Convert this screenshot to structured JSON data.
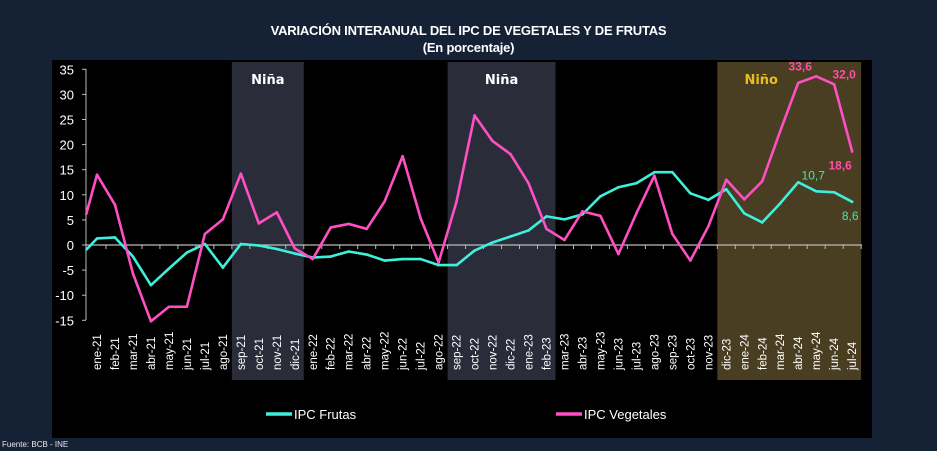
{
  "chart_data": {
    "type": "line",
    "title": "VARIACIÓN INTERANUAL DEL IPC DE VEGETALES Y DE FRUTAS",
    "subtitle": "(En porcentaje)",
    "source": "Fuente: BCB - INE",
    "categories": [
      "ene-21",
      "feb-21",
      "mar-21",
      "abr-21",
      "may-21",
      "jun-21",
      "jul-21",
      "ago-21",
      "sep-21",
      "oct-21",
      "nov-21",
      "dic-21",
      "ene-22",
      "feb-22",
      "mar-22",
      "abr-22",
      "may-22",
      "jun-22",
      "jul-22",
      "ago-22",
      "sep-22",
      "oct-22",
      "nov-22",
      "dic-22",
      "ene-23",
      "feb-23",
      "mar-23",
      "abr-23",
      "may-23",
      "jun-23",
      "jul-23",
      "ago-23",
      "sep-23",
      "oct-23",
      "nov-23",
      "dic-23",
      "ene-24",
      "feb-24",
      "mar-24",
      "abr-24",
      "may-24",
      "jun-24",
      "jul-24"
    ],
    "ylim": [
      -15,
      35
    ],
    "yticks": [
      -15,
      -10,
      -5,
      0,
      5,
      10,
      15,
      20,
      25,
      30,
      35
    ],
    "legend_position": "bottom",
    "grid": false,
    "series": [
      {
        "name": "IPC Frutas",
        "color": "#3ef0dc",
        "values": [
          1.3,
          1.5,
          -2.3,
          -8.0,
          -4.7,
          -1.5,
          0.2,
          -4.5,
          0.2,
          -0.1,
          -0.8,
          -1.7,
          -2.5,
          -2.3,
          -1.3,
          -1.9,
          -3.1,
          -2.8,
          -2.8,
          -4.0,
          -4.0,
          -1.1,
          0.5,
          1.7,
          2.9,
          5.7,
          5.1,
          6.1,
          9.7,
          11.5,
          12.3,
          14.5,
          14.5,
          10.3,
          9.0,
          11.1,
          6.3,
          4.5,
          8.3,
          12.5,
          10.7,
          10.5,
          8.6
        ]
      },
      {
        "name": "IPC Vegetales",
        "color": "#ff4fc3",
        "values": [
          14.0,
          8.0,
          -5.7,
          -15.2,
          -12.3,
          -12.3,
          2.2,
          5.1,
          14.2,
          4.3,
          6.5,
          -0.7,
          -2.8,
          3.5,
          4.2,
          3.2,
          8.7,
          17.7,
          5.3,
          -3.5,
          8.7,
          25.8,
          20.7,
          18.1,
          12.3,
          3.2,
          1.0,
          6.7,
          5.8,
          -1.8,
          6.3,
          13.8,
          2.2,
          -3.1,
          3.7,
          13.0,
          9.1,
          12.7,
          22.7,
          32.3,
          33.6,
          32.0,
          18.6
        ]
      }
    ],
    "data_labels": [
      {
        "series": "IPC Vegetales",
        "category": "may-24",
        "text": "33,6",
        "color": "#ff4fa8"
      },
      {
        "series": "IPC Vegetales",
        "category": "jun-24",
        "text": "32,0",
        "color": "#ff4fa8"
      },
      {
        "series": "IPC Vegetales",
        "category": "jul-24",
        "text": "18,6",
        "color": "#ff4fa8"
      },
      {
        "series": "IPC Frutas",
        "category": "may-24",
        "text": "10,7",
        "color": "#4fe3a8"
      },
      {
        "series": "IPC Frutas",
        "category": "jul-24",
        "text": "8,6",
        "color": "#4fe3a8"
      }
    ],
    "annotations": [
      {
        "label": "Niña",
        "from": "sep-21",
        "to": "dic-21",
        "fill": "#2a2d39",
        "text_color": "#ffffff"
      },
      {
        "label": "Niña",
        "from": "sep-22",
        "to": "feb-23",
        "fill": "#2a2d39",
        "text_color": "#ffffff"
      },
      {
        "label": "Niño",
        "from": "dic-23",
        "to": "jul-24",
        "fill": "#493d22",
        "text_color": "#e6be1e"
      }
    ]
  }
}
